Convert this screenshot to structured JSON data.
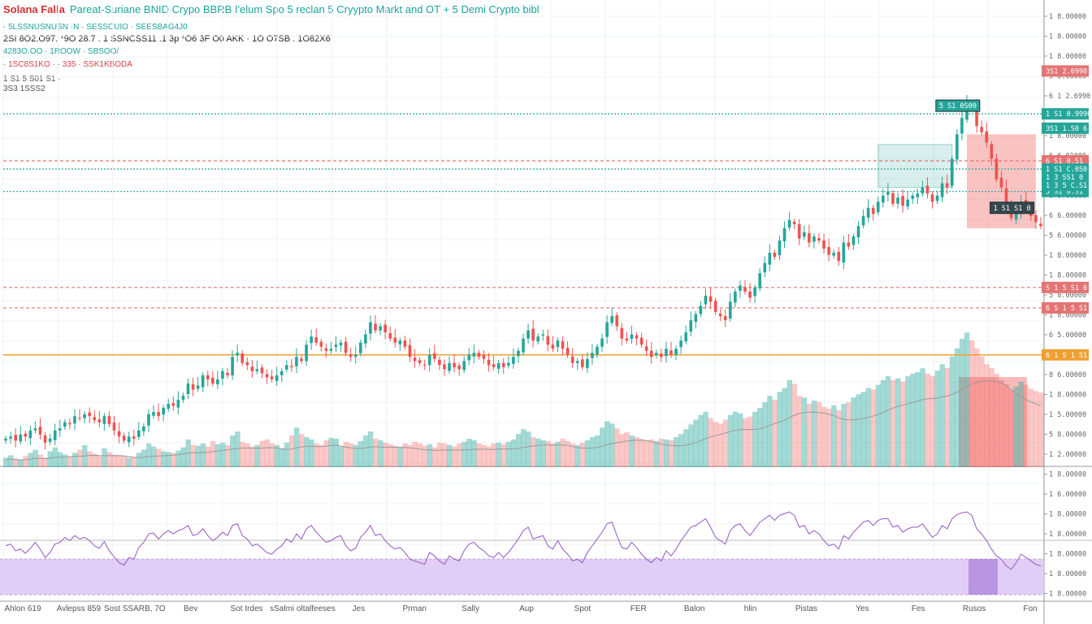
{
  "header": {
    "symbol": "Solana Falla",
    "description": "Pareat-Suriane BNID Crypo BBRB I'elum Spo 5 reclan 5 Cryypto Markt and OT + 5 Demi Crypto bibl",
    "line1": "· 5LSSNUSNUSN ·N · SESSCUIO · SEESBAG4J0",
    "line2": "2SI 8O2.O97. *9O 28.7 . 1 SSNCSS11 .1 3p *O6 3F O0 AKK · 1O O7SB . 1O82X6",
    "line3": "4283O.OO · 1ROOW · SBSOO/",
    "line4": "· 1SC8S1KO · · 335 · SSK1KBODA",
    "line5": "1 S1 5 S01 S1 ·",
    "line6": "3S3 1SSS2"
  },
  "colors": {
    "up": "#26a69a",
    "down": "#ef5350",
    "level_green": "#26a69a",
    "level_red": "#e57373",
    "level_orange": "#f0a030",
    "rsi_line": "#9c63c9",
    "rsi_band": "#dcc6f5"
  },
  "chart_data": {
    "type": "candlestick",
    "x_labels": [
      "Ahlon 619",
      "Avlepss 859",
      "Sost SSARB, 7O",
      "Bev",
      "Sot Irdes",
      "sSalmi oltalfeeses",
      "Jes",
      "Prman",
      "Sally",
      "Aup",
      "Spot",
      "FER",
      "Balon",
      "hlin",
      "Pistas",
      "Yes",
      "Fes",
      "Rusos",
      "Fon"
    ],
    "y_axis_labels": [
      "1 8.00000",
      "1 8.00000",
      "1 8.00000",
      "5 8.00000",
      "6 1 2.6990",
      "6 0.00000",
      "1 8.00000",
      "6 6.01000",
      "5 3.00000",
      "6 6.00000",
      "6 6.00000",
      "5 6.00000",
      "1 8.00000",
      "1 8.00000",
      "5 8.00000",
      "1 8.00000",
      "6 5.00000",
      "1 8.00000",
      "8 6.00000",
      "1 8.00000",
      "1 5.00000",
      "5 8.00000",
      "1 2.00000",
      "1 8.00000",
      "1 6.00000",
      "1 8.00000",
      "1 8.00000",
      "1 8.00000",
      "1 8.00000",
      "1 8.00000"
    ],
    "ohlc_close": [
      139,
      140,
      138,
      141,
      140,
      143,
      144,
      141,
      137,
      139,
      143,
      144,
      147,
      146,
      150,
      149,
      151,
      150,
      148,
      147,
      150,
      146,
      143,
      140,
      138,
      140,
      139,
      143,
      145,
      151,
      152,
      150,
      154,
      156,
      155,
      158,
      160,
      166,
      163,
      165,
      170,
      168,
      166,
      168,
      172,
      170,
      179,
      181,
      176,
      175,
      172,
      173,
      171,
      169,
      168,
      170,
      172,
      175,
      174,
      179,
      177,
      185,
      189,
      186,
      184,
      182,
      183,
      185,
      186,
      181,
      179,
      180,
      186,
      190,
      196,
      192,
      194,
      191,
      188,
      186,
      187,
      184,
      179,
      177,
      176,
      175,
      180,
      178,
      175,
      173,
      176,
      174,
      173,
      177,
      180,
      181,
      179,
      178,
      175,
      174,
      176,
      174,
      176,
      179,
      182,
      188,
      192,
      187,
      189,
      190,
      185,
      183,
      187,
      183,
      180,
      176,
      177,
      174,
      178,
      181,
      184,
      188,
      196,
      199,
      194,
      188,
      187,
      190,
      188,
      185,
      182,
      179,
      181,
      179,
      183,
      180,
      183,
      187,
      191,
      197,
      200,
      204,
      209,
      206,
      201,
      199,
      197,
      206,
      211,
      214,
      211,
      208,
      213,
      220,
      225,
      230,
      228,
      236,
      242,
      246,
      244,
      237,
      240,
      235,
      238,
      236,
      232,
      229,
      230,
      226,
      235,
      233,
      238,
      243,
      248,
      252,
      249,
      255,
      258,
      260,
      254,
      257,
      253,
      256,
      258,
      259,
      262,
      259,
      255,
      258,
      264,
      262,
      276,
      288,
      296,
      303,
      302,
      292,
      289,
      284,
      276,
      266,
      262,
      254,
      247,
      250,
      255,
      251,
      248,
      245,
      243
    ],
    "volumes": [
      12,
      15,
      11,
      10,
      14,
      18,
      22,
      16,
      12,
      20,
      25,
      19,
      16,
      14,
      18,
      22,
      28,
      20,
      17,
      15,
      24,
      19,
      16,
      15,
      14,
      12,
      13,
      18,
      22,
      30,
      26,
      23,
      20,
      19,
      18,
      21,
      25,
      35,
      28,
      27,
      30,
      26,
      33,
      29,
      31,
      28,
      40,
      45,
      32,
      30,
      26,
      28,
      33,
      35,
      30,
      28,
      24,
      31,
      40,
      50,
      42,
      38,
      35,
      30,
      28,
      34,
      37,
      36,
      26,
      32,
      30,
      28,
      33,
      40,
      45,
      36,
      34,
      31,
      29,
      27,
      26,
      30,
      28,
      32,
      30,
      27,
      29,
      25,
      31,
      30,
      28,
      26,
      30,
      32,
      36,
      34,
      30,
      28,
      26,
      30,
      31,
      29,
      32,
      35,
      42,
      48,
      45,
      38,
      36,
      34,
      33,
      30,
      32,
      36,
      33,
      30,
      28,
      31,
      34,
      38,
      40,
      50,
      58,
      55,
      49,
      42,
      44,
      40,
      38,
      36,
      34,
      35,
      33,
      36,
      35,
      34,
      38,
      42,
      48,
      54,
      60,
      66,
      70,
      62,
      57,
      55,
      60,
      66,
      70,
      68,
      62,
      64,
      70,
      75,
      82,
      90,
      85,
      95,
      100,
      110,
      105,
      90,
      88,
      80,
      84,
      82,
      76,
      74,
      78,
      72,
      80,
      82,
      88,
      92,
      95,
      100,
      98,
      104,
      110,
      115,
      110,
      112,
      108,
      115,
      118,
      120,
      125,
      118,
      115,
      122,
      130,
      125,
      140,
      150,
      162,
      170,
      160,
      150,
      140,
      130,
      125,
      118,
      110,
      105,
      98,
      102,
      108,
      104,
      99,
      96,
      94
    ],
    "rsi": [
      58,
      60,
      52,
      54,
      49,
      55,
      62,
      54,
      44,
      50,
      60,
      62,
      68,
      64,
      70,
      66,
      68,
      64,
      58,
      55,
      63,
      52,
      45,
      38,
      35,
      44,
      42,
      56,
      62,
      72,
      73,
      66,
      72,
      76,
      72,
      76,
      78,
      82,
      70,
      72,
      78,
      70,
      64,
      68,
      74,
      70,
      82,
      84,
      70,
      66,
      58,
      60,
      55,
      50,
      48,
      54,
      58,
      66,
      62,
      72,
      66,
      78,
      82,
      74,
      68,
      62,
      64,
      68,
      70,
      58,
      52,
      55,
      68,
      74,
      82,
      70,
      72,
      64,
      58,
      54,
      56,
      50,
      42,
      40,
      38,
      36,
      50,
      46,
      40,
      36,
      46,
      42,
      40,
      52,
      60,
      62,
      56,
      52,
      46,
      44,
      50,
      44,
      50,
      58,
      66,
      76,
      80,
      66,
      68,
      70,
      58,
      54,
      64,
      54,
      48,
      40,
      42,
      38,
      50,
      58,
      66,
      74,
      84,
      86,
      70,
      56,
      54,
      62,
      56,
      48,
      42,
      38,
      44,
      40,
      52,
      46,
      54,
      64,
      72,
      80,
      82,
      86,
      90,
      80,
      68,
      64,
      60,
      76,
      82,
      84,
      76,
      70,
      78,
      86,
      90,
      94,
      88,
      94,
      96,
      98,
      94,
      80,
      82,
      72,
      76,
      72,
      64,
      58,
      60,
      54,
      70,
      66,
      74,
      80,
      86,
      88,
      82,
      88,
      90,
      90,
      80,
      82,
      74,
      78,
      80,
      80,
      84,
      76,
      68,
      72,
      82,
      78,
      90,
      95,
      97,
      98,
      94,
      78,
      72,
      64,
      54,
      46,
      42,
      34,
      30,
      38,
      48,
      44,
      40,
      36,
      34
    ],
    "price_range": [
      125,
      310
    ],
    "volume_range": [
      0,
      200
    ],
    "rsi_range": [
      0,
      100
    ],
    "levels": [
      {
        "value": 298,
        "color": "green",
        "style": "dotted",
        "label": "S1 2.6990",
        "tag": "1 S1 0.9990"
      },
      {
        "value": 275,
        "color": "red",
        "style": "dashed",
        "label": "1 8.00000",
        "tag": "6 S1 0.S1"
      },
      {
        "value": 271,
        "color": "green",
        "style": "dotted",
        "label": "",
        "tag": "1 S1 C.0S0"
      },
      {
        "value": 260,
        "color": "green",
        "style": "dotted",
        "label": "",
        "tag": "5 S1 0.S1"
      },
      {
        "value": 213,
        "color": "red",
        "style": "dashed",
        "label": "",
        "tag": "S 1 5 S1 0"
      },
      {
        "value": 203,
        "color": "red",
        "style": "dashed",
        "label": "",
        "tag": "6 S 1 5 S1"
      },
      {
        "value": 180,
        "color": "orange",
        "style": "solid",
        "label": "",
        "tag": "6 1 S 1 S1"
      }
    ],
    "extra_tags": [
      {
        "value": 319,
        "color": "red",
        "text": "3S1 2.6990"
      },
      {
        "value": 291,
        "color": "green",
        "text": "3S1 1.S0 6"
      },
      {
        "value": 267,
        "color": "green",
        "text": "1 3 SS1 0"
      },
      {
        "value": 263,
        "color": "green",
        "text": "1 3 5 C.S1"
      }
    ],
    "chart_tags": [
      {
        "text": "5 S1 0S00",
        "color": "green",
        "xi": 193,
        "value": 302
      },
      {
        "text": "1 S1 S1 0",
        "color": "dark",
        "xi": 204,
        "value": 252
      }
    ],
    "zones": [
      {
        "type": "green",
        "from": 177,
        "to": 192,
        "low": 262,
        "high": 283
      },
      {
        "type": "red",
        "from": 195,
        "to": 209,
        "low": 242,
        "high": 288
      }
    ]
  }
}
